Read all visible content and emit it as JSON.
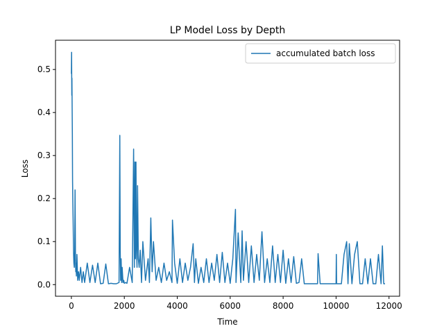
{
  "chart_data": {
    "type": "line",
    "title": "LP Model Loss by Depth",
    "xlabel": "Time",
    "ylabel": "Loss",
    "xlim": [
      -600,
      12400
    ],
    "ylim": [
      -0.027,
      0.568
    ],
    "x_ticks": [
      0,
      2000,
      4000,
      6000,
      8000,
      10000,
      12000
    ],
    "x_tick_labels": [
      "0",
      "2000",
      "4000",
      "6000",
      "8000",
      "10000",
      "12000"
    ],
    "y_ticks": [
      0.0,
      0.1,
      0.2,
      0.3,
      0.4,
      0.5
    ],
    "y_tick_labels": [
      "0.0",
      "0.1",
      "0.2",
      "0.3",
      "0.4",
      "0.5"
    ],
    "grid": false,
    "legend_position": "top-right",
    "color": "#1f77b4",
    "series": [
      {
        "name": "accumulated batch loss",
        "x": [
          0,
          8,
          15,
          22,
          30,
          38,
          45,
          55,
          65,
          75,
          85,
          95,
          110,
          125,
          140,
          155,
          165,
          175,
          190,
          210,
          240,
          270,
          300,
          350,
          400,
          450,
          500,
          600,
          700,
          800,
          900,
          1000,
          1100,
          1200,
          1300,
          1400,
          1500,
          1600,
          1700,
          1800,
          1830,
          1845,
          1860,
          1880,
          1900,
          1920,
          1950,
          1980,
          2000,
          2050,
          2100,
          2200,
          2300,
          2350,
          2370,
          2380,
          2400,
          2420,
          2440,
          2460,
          2480,
          2500,
          2530,
          2560,
          2600,
          2650,
          2700,
          2800,
          2900,
          2950,
          3000,
          3050,
          3100,
          3200,
          3300,
          3400,
          3500,
          3600,
          3700,
          3800,
          3820,
          3900,
          4000,
          4100,
          4200,
          4300,
          4400,
          4500,
          4600,
          4650,
          4700,
          4800,
          4900,
          5000,
          5100,
          5200,
          5300,
          5400,
          5500,
          5600,
          5700,
          5800,
          5900,
          6000,
          6100,
          6200,
          6220,
          6300,
          6400,
          6450,
          6500,
          6600,
          6700,
          6800,
          6900,
          7000,
          7100,
          7200,
          7300,
          7400,
          7500,
          7600,
          7700,
          7800,
          7900,
          8000,
          8100,
          8200,
          8300,
          8400,
          8500,
          8600,
          8700,
          8800,
          9000,
          9200,
          9300,
          9320,
          9400,
          9600,
          9800,
          10000,
          10010,
          10020,
          10100,
          10200,
          10300,
          10400,
          10450,
          10500,
          10600,
          10700,
          10800,
          10900,
          11000,
          11100,
          11200,
          11300,
          11400,
          11500,
          11600,
          11700,
          11750,
          11800,
          11850
        ],
        "y": [
          0.49,
          0.54,
          0.44,
          0.48,
          0.41,
          0.35,
          0.24,
          0.19,
          0.15,
          0.1,
          0.07,
          0.05,
          0.04,
          0.08,
          0.22,
          0.06,
          0.03,
          0.05,
          0.02,
          0.07,
          0.01,
          0.03,
          0.01,
          0.04,
          0.005,
          0.03,
          0.005,
          0.05,
          0.005,
          0.045,
          0.005,
          0.05,
          0.002,
          0.003,
          0.048,
          0.002,
          0.003,
          0.002,
          0.002,
          0.005,
          0.347,
          0.08,
          0.01,
          0.06,
          0.005,
          0.04,
          0.005,
          0.01,
          0.003,
          0.005,
          0.003,
          0.04,
          0.005,
          0.315,
          0.12,
          0.04,
          0.285,
          0.06,
          0.285,
          0.08,
          0.04,
          0.23,
          0.06,
          0.04,
          0.08,
          0.005,
          0.1,
          0.01,
          0.06,
          0.005,
          0.155,
          0.03,
          0.1,
          0.01,
          0.04,
          0.005,
          0.05,
          0.01,
          0.03,
          0.005,
          0.15,
          0.05,
          0.003,
          0.06,
          0.005,
          0.05,
          0.01,
          0.04,
          0.095,
          0.005,
          0.06,
          0.003,
          0.04,
          0.005,
          0.06,
          0.005,
          0.05,
          0.01,
          0.07,
          0.005,
          0.075,
          0.005,
          0.05,
          0.003,
          0.06,
          0.175,
          0.005,
          0.12,
          0.005,
          0.125,
          0.01,
          0.1,
          0.005,
          0.09,
          0.005,
          0.07,
          0.01,
          0.123,
          0.005,
          0.06,
          0.005,
          0.09,
          0.005,
          0.07,
          0.005,
          0.08,
          0.003,
          0.06,
          0.005,
          0.065,
          0.003,
          0.005,
          0.06,
          0.002,
          0.002,
          0.002,
          0.002,
          0.072,
          0.002,
          0.002,
          0.002,
          0.002,
          0.07,
          0.002,
          0.002,
          0.002,
          0.07,
          0.1,
          0.002,
          0.095,
          0.002,
          0.07,
          0.1,
          0.002,
          0.002,
          0.06,
          0.002,
          0.06,
          0.002,
          0.002,
          0.07,
          0.002,
          0.09,
          0.002,
          0.002
        ]
      }
    ]
  }
}
